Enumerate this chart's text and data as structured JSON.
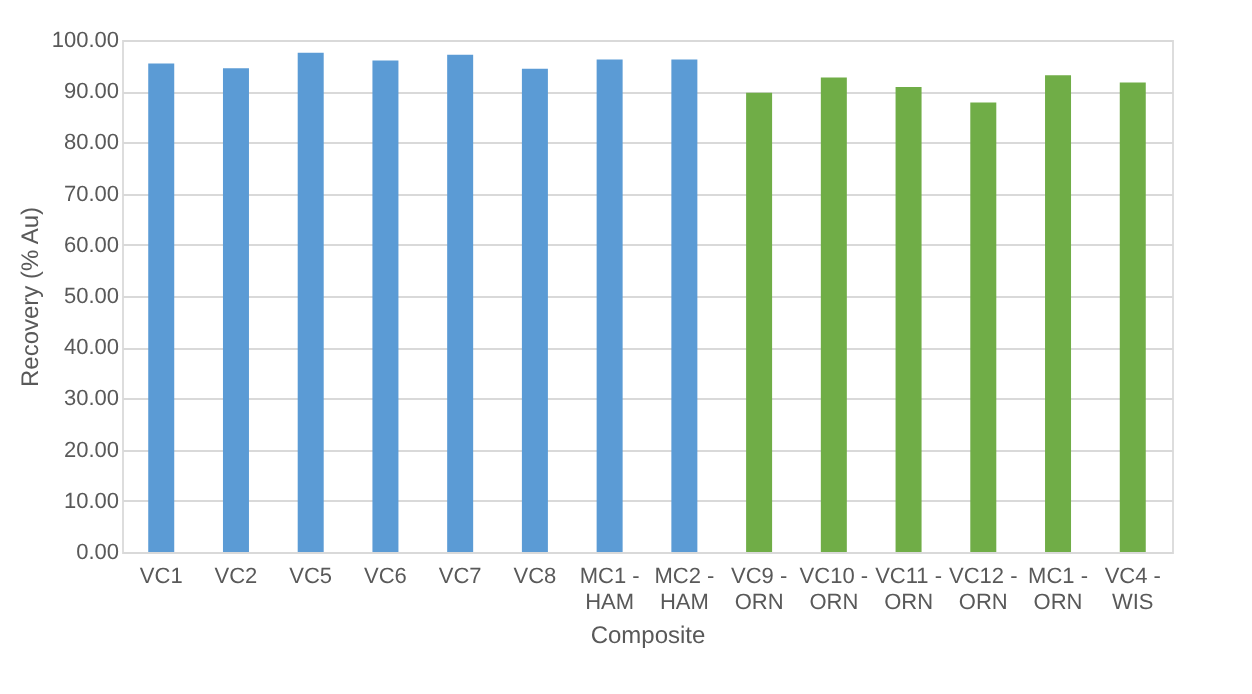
{
  "chart_data": {
    "type": "bar",
    "xlabel": "Composite",
    "ylabel": "Recovery (% Au)",
    "categories": [
      "VC1",
      "VC2",
      "VC5",
      "VC6",
      "VC7",
      "VC8",
      "MC1 - HAM",
      "MC2 - HAM",
      "VC9 - ORN",
      "VC10 - ORN",
      "VC11 - ORN",
      "VC12 - ORN",
      "MC1 - ORN",
      "VC4 - WIS"
    ],
    "values": [
      95.4,
      94.5,
      97.5,
      96.0,
      97.1,
      94.4,
      96.2,
      96.2,
      89.7,
      92.7,
      90.8,
      87.8,
      93.1,
      91.7
    ],
    "colors": [
      "#5b9bd5",
      "#5b9bd5",
      "#5b9bd5",
      "#5b9bd5",
      "#5b9bd5",
      "#5b9bd5",
      "#5b9bd5",
      "#5b9bd5",
      "#70ad47",
      "#70ad47",
      "#70ad47",
      "#70ad47",
      "#70ad47",
      "#70ad47"
    ],
    "ylim": [
      0,
      100
    ],
    "yticks": [
      {
        "value": 0,
        "label": "0.00"
      },
      {
        "value": 10,
        "label": "10.00"
      },
      {
        "value": 20,
        "label": "20.00"
      },
      {
        "value": 30,
        "label": "30.00"
      },
      {
        "value": 40,
        "label": "40.00"
      },
      {
        "value": 50,
        "label": "50.00"
      },
      {
        "value": 60,
        "label": "60.00"
      },
      {
        "value": 70,
        "label": "70.00"
      },
      {
        "value": 80,
        "label": "80.00"
      },
      {
        "value": 90,
        "label": "90.00"
      },
      {
        "value": 100,
        "label": "100.00"
      }
    ],
    "grid": "y"
  }
}
